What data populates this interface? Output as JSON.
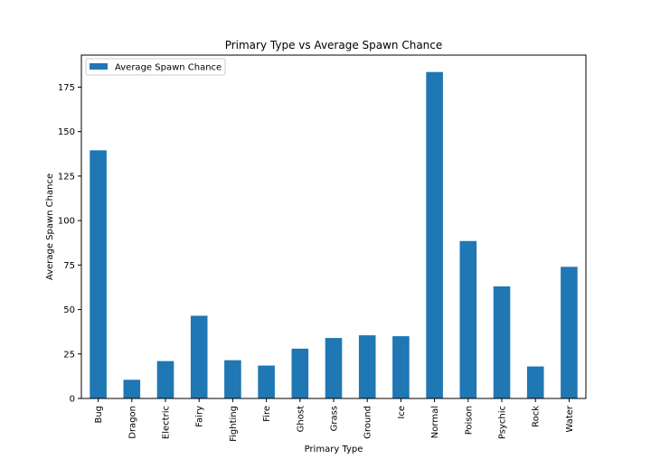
{
  "chart_data": {
    "type": "bar",
    "title": "Primary Type vs Average Spawn Chance",
    "xlabel": "Primary Type",
    "ylabel": "Average Spawn Chance",
    "categories": [
      "Bug",
      "Dragon",
      "Electric",
      "Fairy",
      "Fighting",
      "Fire",
      "Ghost",
      "Grass",
      "Ground",
      "Ice",
      "Normal",
      "Poison",
      "Psychic",
      "Rock",
      "Water"
    ],
    "series": [
      {
        "name": "Average Spawn Chance",
        "values": [
          139.5,
          10.5,
          21.0,
          46.5,
          21.5,
          18.5,
          28.0,
          34.0,
          35.5,
          35.0,
          183.5,
          88.5,
          63.0,
          18.0,
          74.0
        ]
      }
    ],
    "ylim": [
      0,
      193
    ],
    "yticks": [
      0,
      25,
      50,
      75,
      100,
      125,
      150,
      175
    ],
    "legend_position": "top-left",
    "grid": false,
    "colors": {
      "bar": "#1f77b4",
      "axis": "#000000",
      "background": "#ffffff"
    }
  }
}
